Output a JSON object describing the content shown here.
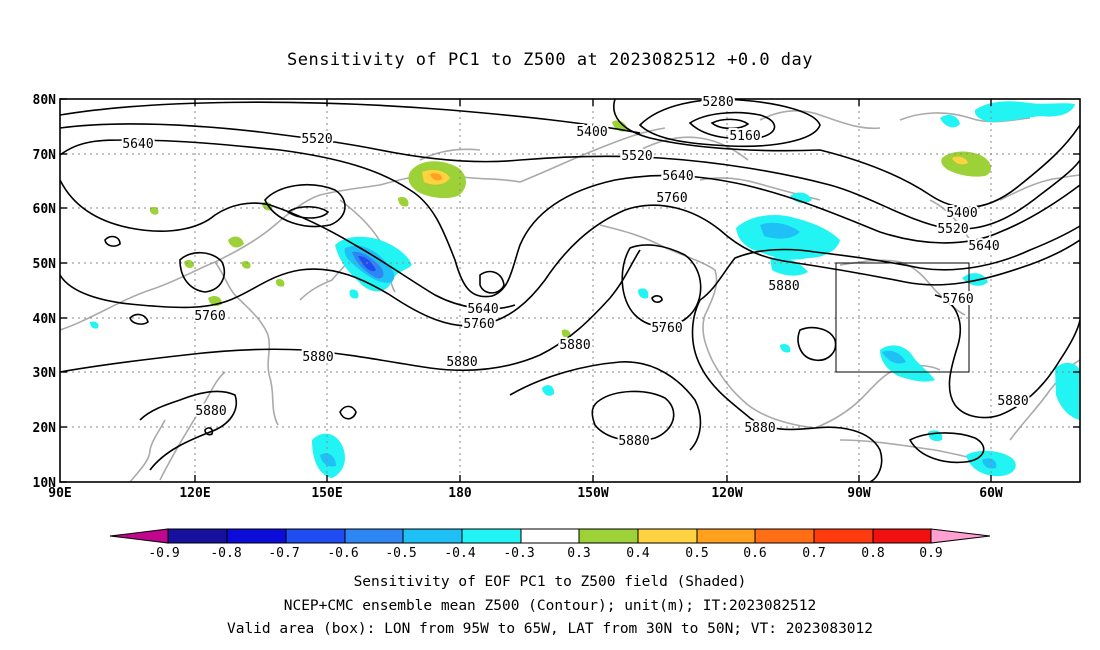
{
  "title": "Sensitivity of PC1 to Z500 at 2023082512 +0.0 day",
  "lat_labels": [
    "80N",
    "70N",
    "60N",
    "50N",
    "40N",
    "30N",
    "20N",
    "10N"
  ],
  "lon_labels": [
    "90E",
    "120E",
    "150E",
    "180",
    "150W",
    "120W",
    "90W",
    "60W"
  ],
  "contour_labels": {
    "c5280": "5280",
    "c5160": "5160",
    "c5400": "5400",
    "c5520": "5520",
    "c5640": "5640",
    "c5760": "5760",
    "c5880": "5880"
  },
  "box": {
    "lon_from": "95W",
    "lon_to": "65W",
    "lat_from": "30N",
    "lat_to": "50N"
  },
  "colorbar": {
    "labels": [
      "-0.9",
      "-0.8",
      "-0.7",
      "-0.6",
      "-0.5",
      "-0.4",
      "-0.3",
      "0.3",
      "0.4",
      "0.5",
      "0.6",
      "0.7",
      "0.8",
      "0.9"
    ],
    "colors": [
      "#c0068c",
      "#16119c",
      "#0c0cd8",
      "#1f4df2",
      "#2d86f2",
      "#1fc0f6",
      "#22f4f4",
      "#ffffff",
      "#9cd138",
      "#ffd241",
      "#ffa11e",
      "#ff6d14",
      "#ff3a0e",
      "#f01010",
      "#ffa0d2"
    ]
  },
  "shading_colors": {
    "cyan": "#22f4f4",
    "lightblue": "#1fc0f6",
    "blue": "#2d86f2",
    "darkblue": "#1f4df2",
    "green": "#9cd138",
    "yellow": "#ffd241",
    "orange": "#ffa11e"
  },
  "captions": {
    "line1": "Sensitivity of EOF PC1 to Z500 field (Shaded)",
    "line2": "NCEP+CMC ensemble mean Z500 (Contour); unit(m); IT:2023082512",
    "line3": "Valid area (box): LON from 95W to 65W, LAT from 30N to 50N; VT: 2023083012"
  }
}
